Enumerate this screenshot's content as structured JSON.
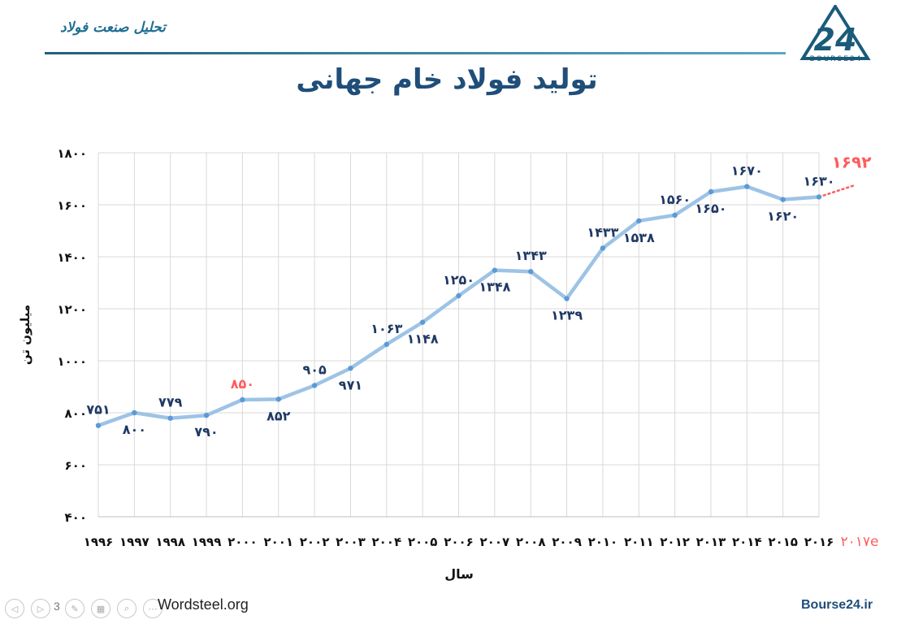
{
  "header": {
    "section_title": "تحلیل صنعت فولاد",
    "logo_text": "BOURSE24"
  },
  "main_title": "تولید فولاد خام جهانی",
  "footer": {
    "source": "Wordsteel.org",
    "site": "Bourse24.ir",
    "page_number": "3"
  },
  "colors": {
    "line": "#9dc3e6",
    "point": "#5b9bd5",
    "label": "#1f3864",
    "highlight": "#ff5c5c",
    "grid": "#d9d9d9"
  },
  "chart_data": {
    "type": "line",
    "title": "",
    "xlabel": "سال",
    "ylabel": "میلیون تن",
    "ylim": [
      400,
      1800
    ],
    "yticks": [
      "۴۰۰",
      "۶۰۰",
      "۸۰۰",
      "۱۰۰۰",
      "۱۲۰۰",
      "۱۴۰۰",
      "۱۶۰۰",
      "۱۸۰۰"
    ],
    "ytick_values": [
      400,
      600,
      800,
      1000,
      1200,
      1400,
      1600,
      1800
    ],
    "grid": true,
    "categories": [
      "۱۹۹۶",
      "۱۹۹۷",
      "۱۹۹۸",
      "۱۹۹۹",
      "۲۰۰۰",
      "۲۰۰۱",
      "۲۰۰۲",
      "۲۰۰۳",
      "۲۰۰۴",
      "۲۰۰۵",
      "۲۰۰۶",
      "۲۰۰۷",
      "۲۰۰۸",
      "۲۰۰۹",
      "۲۰۱۰",
      "۲۰۱۱",
      "۲۰۱۲",
      "۲۰۱۳",
      "۲۰۱۴",
      "۲۰۱۵",
      "۲۰۱۶"
    ],
    "values": [
      751,
      800,
      779,
      790,
      850,
      852,
      905,
      971,
      1063,
      1148,
      1250,
      1348,
      1343,
      1239,
      1433,
      1538,
      1560,
      1650,
      1670,
      1620,
      1630
    ],
    "data_labels": [
      "۷۵۱",
      "۸۰۰",
      "۷۷۹",
      "۷۹۰",
      "۸۵۰",
      "۸۵۲",
      "۹۰۵",
      "۹۷۱",
      "۱۰۶۳",
      "۱۱۴۸",
      "۱۲۵۰",
      "۱۳۴۸",
      "۱۳۴۳",
      "۱۲۳۹",
      "۱۴۳۳",
      "۱۵۳۸",
      "۱۵۶۰",
      "۱۶۵۰",
      "۱۶۷۰",
      "۱۶۲۰",
      "۱۶۳۰"
    ],
    "label_positions": [
      "above",
      "below",
      "above",
      "below",
      "above",
      "below",
      "above",
      "below",
      "above",
      "below",
      "above",
      "below",
      "above",
      "below",
      "above",
      "below",
      "above",
      "below",
      "above",
      "below",
      "above"
    ],
    "highlight_index": 4,
    "forecast": {
      "category": "۲۰۱۷e",
      "value": 1692,
      "label": "۱۶۹۲"
    }
  }
}
